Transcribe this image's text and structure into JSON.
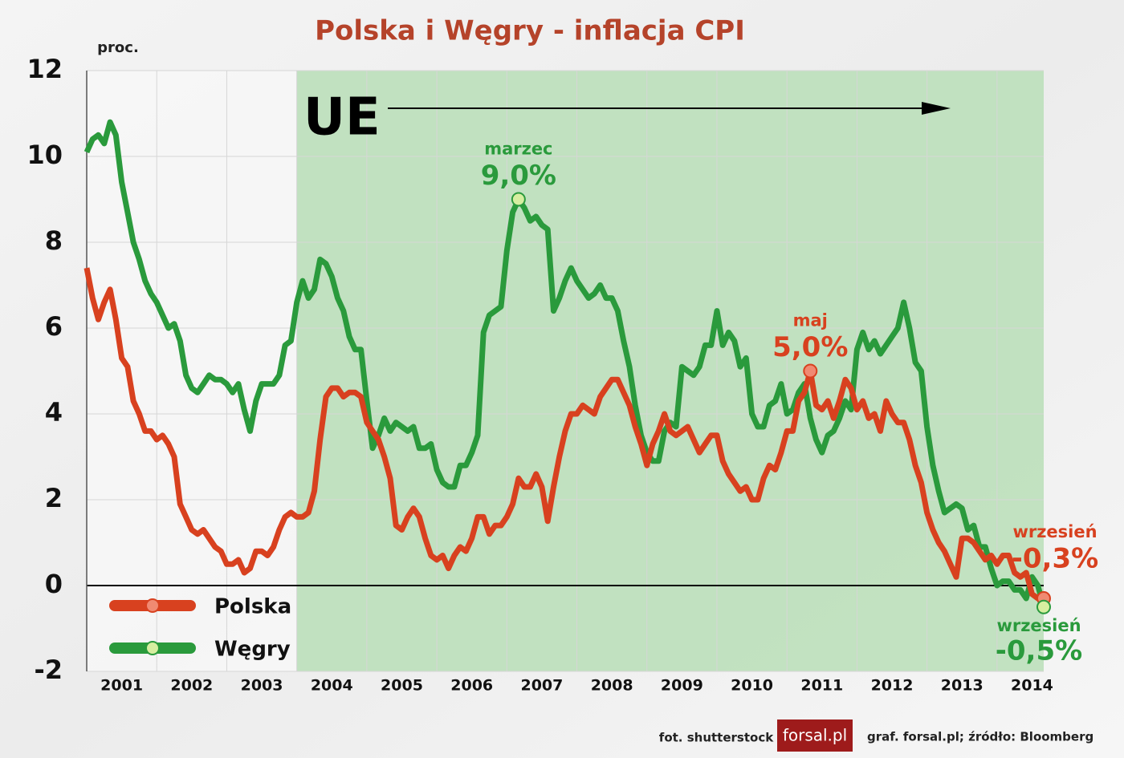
{
  "chart_data": {
    "type": "line",
    "title": "Polska i Węgry - inflacja CPI",
    "y_label": "proc.",
    "eu_label": "UE",
    "categories": [
      null,
      null,
      null,
      null,
      null,
      null,
      "2001",
      null,
      null,
      null,
      null,
      null,
      null,
      null,
      null,
      null,
      null,
      null,
      "2002",
      null,
      null,
      null,
      null,
      null,
      null,
      null,
      null,
      null,
      null,
      null,
      "2003",
      null,
      null,
      null,
      null,
      null,
      null,
      null,
      null,
      null,
      null,
      null,
      "2004",
      null,
      null,
      null,
      null,
      null,
      null,
      null,
      null,
      null,
      null,
      null,
      "2005",
      null,
      null,
      null,
      null,
      null,
      null,
      null,
      null,
      null,
      null,
      null,
      "2006",
      null,
      null,
      null,
      null,
      null,
      null,
      null,
      null,
      null,
      null,
      null,
      "2007",
      null,
      null,
      null,
      null,
      null,
      null,
      null,
      null,
      null,
      null,
      null,
      "2008",
      null,
      null,
      null,
      null,
      null,
      null,
      null,
      null,
      null,
      null,
      null,
      "2009",
      null,
      null,
      null,
      null,
      null,
      null,
      null,
      null,
      null,
      null,
      null,
      "2010",
      null,
      null,
      null,
      null,
      null,
      null,
      null,
      null,
      null,
      null,
      null,
      "2011",
      null,
      null,
      null,
      null,
      null,
      null,
      null,
      null,
      null,
      null,
      null,
      "2012",
      null,
      null,
      null,
      null,
      null,
      null,
      null,
      null,
      null,
      null,
      null,
      "2013",
      null,
      null,
      null,
      null,
      null,
      null,
      null,
      null,
      null,
      null,
      null,
      "2014",
      null,
      null
    ],
    "series": [
      {
        "name": "Polska",
        "color": "#d8411f",
        "marker_color": "#f08a72",
        "values": [
          7.4,
          6.7,
          6.2,
          6.6,
          6.9,
          6.2,
          5.3,
          5.1,
          4.3,
          4.0,
          3.6,
          3.6,
          3.4,
          3.5,
          3.3,
          3.0,
          1.9,
          1.6,
          1.3,
          1.2,
          1.3,
          1.1,
          0.9,
          0.8,
          0.5,
          0.5,
          0.6,
          0.3,
          0.4,
          0.8,
          0.8,
          0.7,
          0.9,
          1.3,
          1.6,
          1.7,
          1.6,
          1.6,
          1.7,
          2.2,
          3.4,
          4.4,
          4.6,
          4.6,
          4.4,
          4.5,
          4.5,
          4.4,
          3.8,
          3.6,
          3.4,
          3.0,
          2.5,
          1.4,
          1.3,
          1.6,
          1.8,
          1.6,
          1.1,
          0.7,
          0.6,
          0.7,
          0.4,
          0.7,
          0.9,
          0.8,
          1.1,
          1.6,
          1.6,
          1.2,
          1.4,
          1.4,
          1.6,
          1.9,
          2.5,
          2.3,
          2.3,
          2.6,
          2.3,
          1.5,
          2.3,
          3.0,
          3.6,
          4.0,
          4.0,
          4.2,
          4.1,
          4.0,
          4.4,
          4.6,
          4.8,
          4.8,
          4.5,
          4.2,
          3.7,
          3.3,
          2.8,
          3.3,
          3.6,
          4.0,
          3.6,
          3.5,
          3.6,
          3.7,
          3.4,
          3.1,
          3.3,
          3.5,
          3.5,
          2.9,
          2.6,
          2.4,
          2.2,
          2.3,
          2.0,
          2.0,
          2.5,
          2.8,
          2.7,
          3.1,
          3.6,
          3.6,
          4.3,
          4.5,
          5.0,
          4.2,
          4.1,
          4.3,
          3.9,
          4.3,
          4.8,
          4.6,
          4.1,
          4.3,
          3.9,
          4.0,
          3.6,
          4.3,
          4.0,
          3.8,
          3.8,
          3.4,
          2.8,
          2.4,
          1.7,
          1.3,
          1.0,
          0.8,
          0.5,
          0.2,
          1.1,
          1.1,
          1.0,
          0.8,
          0.6,
          0.7,
          0.5,
          0.7,
          0.7,
          0.3,
          0.2,
          0.3,
          -0.2,
          -0.3,
          -0.3
        ]
      },
      {
        "name": "Węgry",
        "color": "#2a9a3c",
        "marker_color": "#d6eea0",
        "values": [
          10.1,
          10.4,
          10.5,
          10.3,
          10.8,
          10.5,
          9.4,
          8.7,
          8.0,
          7.6,
          7.1,
          6.8,
          6.6,
          6.3,
          6.0,
          6.1,
          5.7,
          4.9,
          4.6,
          4.5,
          4.7,
          4.9,
          4.8,
          4.8,
          4.7,
          4.5,
          4.7,
          4.1,
          3.6,
          4.3,
          4.7,
          4.7,
          4.7,
          4.9,
          5.6,
          5.7,
          6.6,
          7.1,
          6.7,
          6.9,
          7.6,
          7.5,
          7.2,
          6.7,
          6.4,
          5.8,
          5.5,
          5.5,
          4.3,
          3.2,
          3.5,
          3.9,
          3.6,
          3.8,
          3.7,
          3.6,
          3.7,
          3.2,
          3.2,
          3.3,
          2.7,
          2.4,
          2.3,
          2.3,
          2.8,
          2.8,
          3.1,
          3.5,
          5.9,
          6.3,
          6.4,
          6.5,
          7.8,
          8.7,
          9.0,
          8.8,
          8.5,
          8.6,
          8.4,
          8.3,
          6.4,
          6.7,
          7.1,
          7.4,
          7.1,
          6.9,
          6.7,
          6.8,
          7.0,
          6.7,
          6.7,
          6.4,
          5.7,
          5.1,
          4.2,
          3.5,
          3.1,
          2.9,
          2.9,
          3.6,
          3.8,
          3.7,
          5.1,
          5.0,
          4.9,
          5.1,
          5.6,
          5.6,
          6.4,
          5.6,
          5.9,
          5.7,
          5.1,
          5.3,
          4.0,
          3.7,
          3.7,
          4.2,
          4.3,
          4.7,
          4.0,
          4.1,
          4.5,
          4.7,
          3.9,
          3.4,
          3.1,
          3.5,
          3.6,
          3.9,
          4.3,
          4.1,
          5.5,
          5.9,
          5.5,
          5.7,
          5.4,
          5.6,
          5.8,
          6.0,
          6.6,
          6.0,
          5.2,
          5.0,
          3.7,
          2.8,
          2.2,
          1.7,
          1.8,
          1.9,
          1.8,
          1.3,
          1.4,
          0.9,
          0.9,
          0.4,
          0.0,
          0.1,
          0.1,
          -0.1,
          -0.1,
          -0.3,
          0.2,
          0.0,
          -0.5
        ]
      }
    ],
    "annotations": [
      {
        "series": 1,
        "index": 74,
        "note": "marzec",
        "label": "9,0%"
      },
      {
        "series": 0,
        "index": 124,
        "note": "maj",
        "label": "5,0%"
      },
      {
        "series": 0,
        "index": 164,
        "note": "wrzesień",
        "label": "-0,3%"
      },
      {
        "series": 1,
        "index": 164,
        "note": "wrzesień",
        "label": "-0,5%"
      }
    ],
    "ylim": [
      -2,
      12
    ],
    "yticks": [
      -2,
      0,
      2,
      4,
      6,
      8,
      10,
      12
    ],
    "grid": true,
    "legend": "lower left"
  },
  "footer": {
    "photo": "fot. shutterstock",
    "logo": "forsal.pl",
    "source": "graf. forsal.pl;  źródło: Bloomberg"
  }
}
